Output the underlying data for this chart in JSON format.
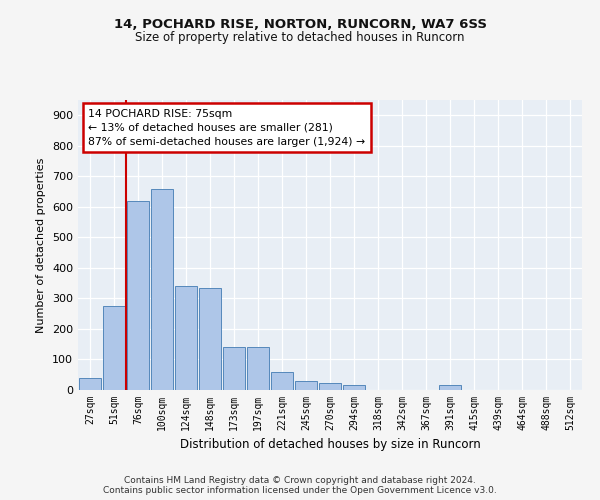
{
  "title1": "14, POCHARD RISE, NORTON, RUNCORN, WA7 6SS",
  "title2": "Size of property relative to detached houses in Runcorn",
  "xlabel": "Distribution of detached houses by size in Runcorn",
  "ylabel": "Number of detached properties",
  "bin_labels": [
    "27sqm",
    "51sqm",
    "76sqm",
    "100sqm",
    "124sqm",
    "148sqm",
    "173sqm",
    "197sqm",
    "221sqm",
    "245sqm",
    "270sqm",
    "294sqm",
    "318sqm",
    "342sqm",
    "367sqm",
    "391sqm",
    "415sqm",
    "439sqm",
    "464sqm",
    "488sqm",
    "512sqm"
  ],
  "bar_values": [
    40,
    275,
    620,
    660,
    340,
    335,
    140,
    140,
    60,
    28,
    22,
    18,
    0,
    0,
    0,
    18,
    0,
    0,
    0,
    0,
    0
  ],
  "bar_color": "#aec6e8",
  "bar_edge_color": "#5588bb",
  "red_line_x": 1.5,
  "annotation_line1": "14 POCHARD RISE: 75sqm",
  "annotation_line2": "← 13% of detached houses are smaller (281)",
  "annotation_line3": "87% of semi-detached houses are larger (1,924) →",
  "annotation_box_color": "#ffffff",
  "annotation_border_color": "#cc0000",
  "ylim": [
    0,
    950
  ],
  "yticks": [
    0,
    100,
    200,
    300,
    400,
    500,
    600,
    700,
    800,
    900
  ],
  "footer_line1": "Contains HM Land Registry data © Crown copyright and database right 2024.",
  "footer_line2": "Contains public sector information licensed under the Open Government Licence v3.0.",
  "bg_color": "#e8eef5",
  "grid_color": "#ffffff",
  "title1_fontsize": 9.5,
  "title2_fontsize": 8.5,
  "ylabel_fontsize": 8,
  "xlabel_fontsize": 8.5
}
